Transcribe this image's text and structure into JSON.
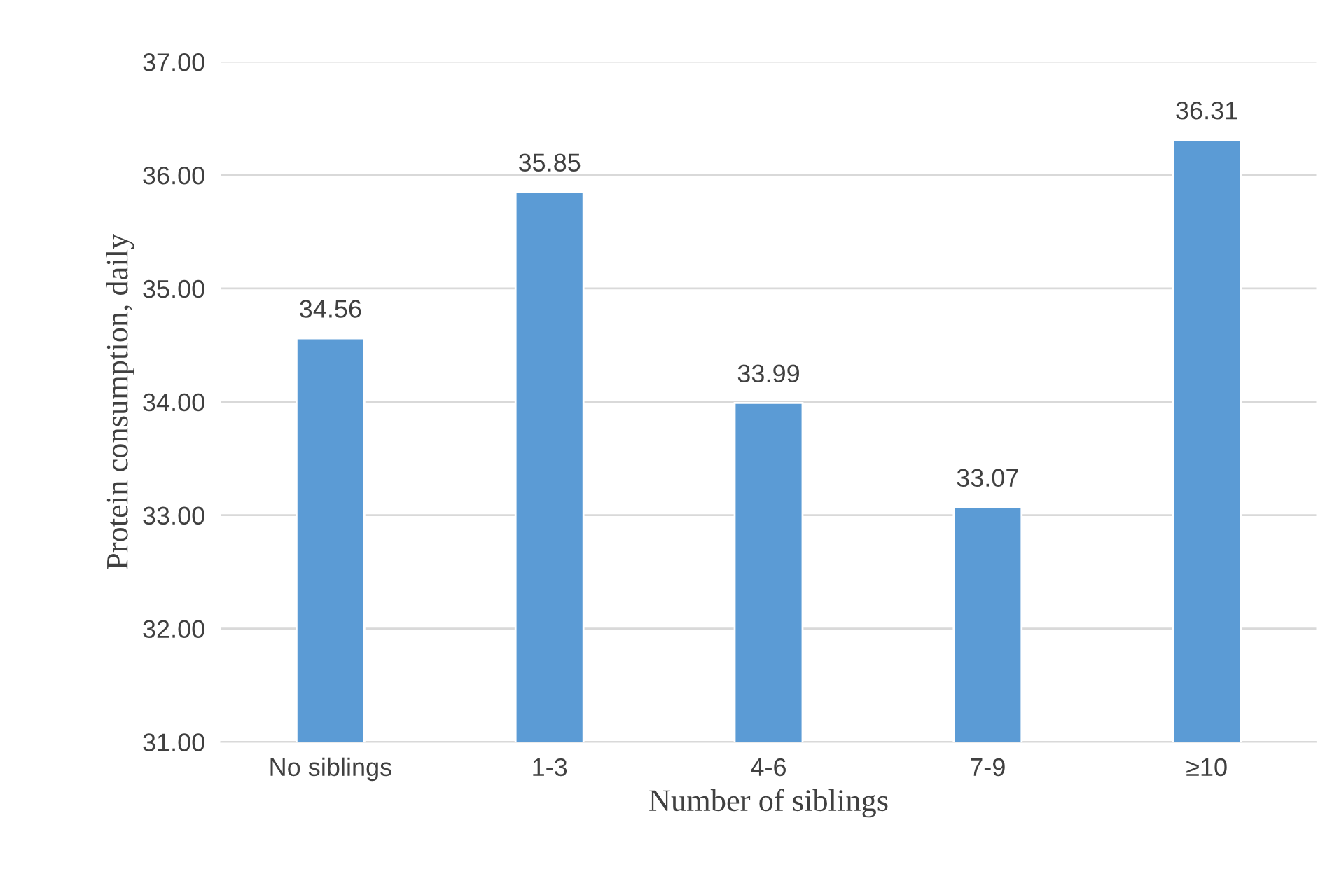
{
  "chart_data": {
    "type": "bar",
    "xlabel": "Number of siblings",
    "ylabel": "Protein consumption, daily",
    "categories": [
      "No siblings",
      "1-3",
      "4-6",
      "7-9",
      "≥10"
    ],
    "values": [
      34.56,
      35.85,
      33.99,
      33.07,
      36.31
    ],
    "color": "#5b9bd5",
    "ylim": [
      31,
      37
    ],
    "yticks": [
      {
        "value": 31,
        "label": "31.00"
      },
      {
        "value": 32,
        "label": "32.00"
      },
      {
        "value": 33,
        "label": "33.00"
      },
      {
        "value": 34,
        "label": "34.00"
      },
      {
        "value": 35,
        "label": "35.00"
      },
      {
        "value": 36,
        "label": "36.00"
      },
      {
        "value": 37,
        "label": "37.00"
      }
    ],
    "grid": "y",
    "data_labels": true
  }
}
